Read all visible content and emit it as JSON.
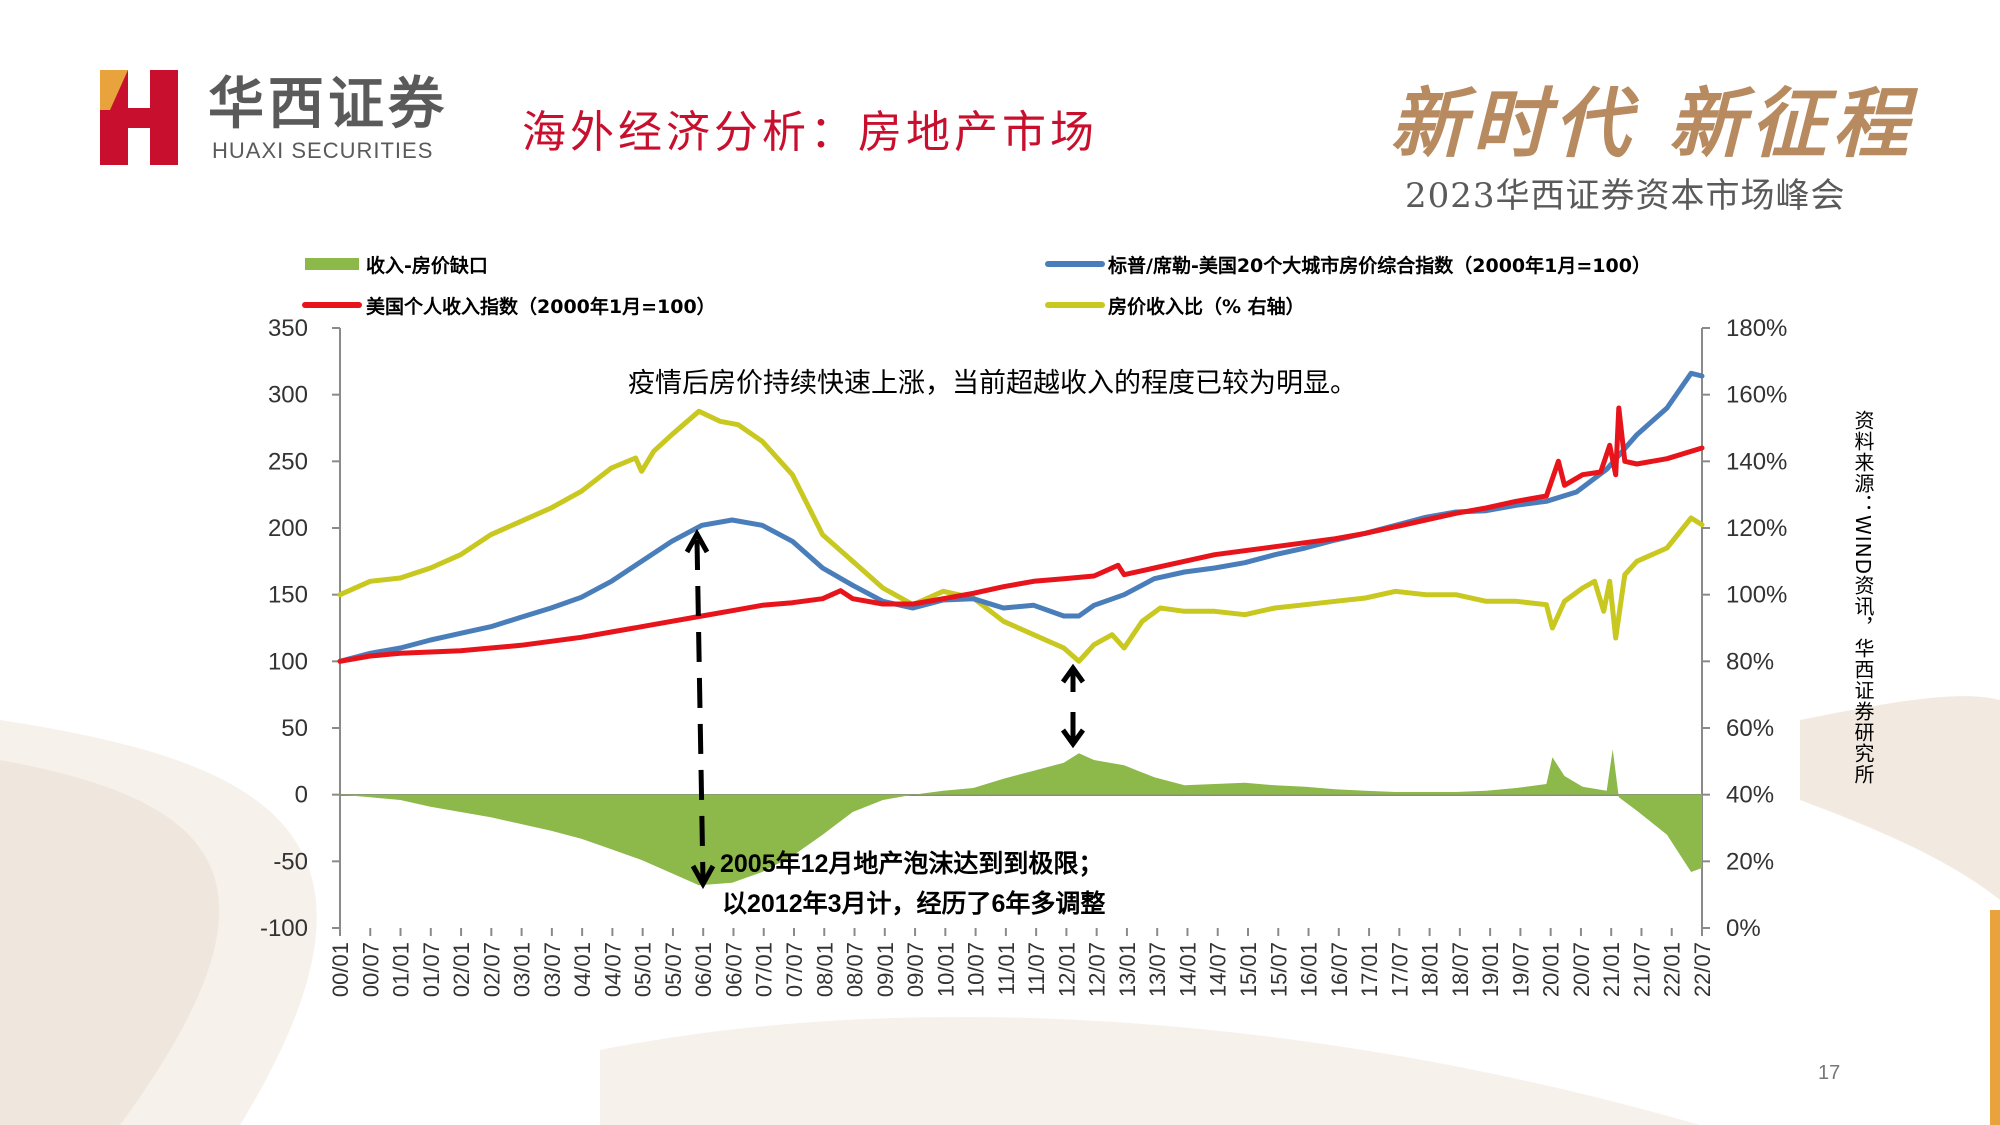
{
  "header": {
    "logo_cn": "华西证券",
    "logo_en": "HUAXI SECURITIES",
    "slide_title": "海外经济分析：房地产市场",
    "slogan": "新时代 新征程",
    "summit": "2023华西证券资本市场峰会"
  },
  "source_note": "资料来源：WIND资讯，华西证券研究所",
  "page_number": "17",
  "colors": {
    "gap": "#8db84a",
    "case_shiller": "#4a7ebb",
    "income": "#e8141b",
    "ratio": "#c8c820",
    "title_red": "#c8102e",
    "gold": "#b78a5f"
  },
  "chart_data": {
    "type": "line",
    "annotations": [
      "疫情后房价持续快速上涨，当前超越收入的程度已较为明显。",
      "2005年12月地产泡沫达到到极限；",
      "以2012年3月计，经历了6年多调整"
    ],
    "y_left": {
      "ticks": [
        "350",
        "300",
        "250",
        "200",
        "150",
        "100",
        "50",
        "0",
        "-50",
        "-100"
      ],
      "range": [
        -100,
        350
      ]
    },
    "y_right": {
      "ticks": [
        "180%",
        "160%",
        "140%",
        "120%",
        "100%",
        "80%",
        "60%",
        "40%",
        "20%",
        "0%"
      ],
      "range": [
        0,
        180
      ]
    },
    "x_ticks": [
      "00/01",
      "00/07",
      "01/01",
      "01/07",
      "02/01",
      "02/07",
      "03/01",
      "03/07",
      "04/01",
      "04/07",
      "05/01",
      "05/07",
      "06/01",
      "06/07",
      "07/01",
      "07/07",
      "08/01",
      "08/07",
      "09/01",
      "09/07",
      "10/01",
      "10/07",
      "11/01",
      "11/07",
      "12/01",
      "12/07",
      "13/01",
      "13/07",
      "14/01",
      "14/07",
      "15/01",
      "15/07",
      "16/01",
      "16/07",
      "17/01",
      "17/07",
      "18/01",
      "18/07",
      "19/01",
      "19/07",
      "20/01",
      "20/07",
      "21/01",
      "21/07",
      "22/01",
      "22/07"
    ],
    "x_range": [
      2000.0,
      2022.58
    ],
    "series": [
      {
        "name": "收入-房价缺口",
        "kind": "area",
        "axis": "left",
        "points": [
          [
            2000.0,
            0
          ],
          [
            2000.5,
            -2
          ],
          [
            2001.0,
            -4
          ],
          [
            2001.5,
            -9
          ],
          [
            2002.0,
            -13
          ],
          [
            2002.5,
            -17
          ],
          [
            2003.0,
            -22
          ],
          [
            2003.5,
            -27
          ],
          [
            2004.0,
            -33
          ],
          [
            2004.5,
            -41
          ],
          [
            2005.0,
            -49
          ],
          [
            2005.5,
            -59
          ],
          [
            2005.95,
            -68
          ],
          [
            2006.5,
            -66
          ],
          [
            2007.0,
            -58
          ],
          [
            2007.5,
            -46
          ],
          [
            2008.0,
            -30
          ],
          [
            2008.5,
            -13
          ],
          [
            2009.0,
            -4
          ],
          [
            2009.5,
            0
          ],
          [
            2010.0,
            3
          ],
          [
            2010.5,
            5
          ],
          [
            2011.0,
            12
          ],
          [
            2011.5,
            18
          ],
          [
            2012.0,
            24
          ],
          [
            2012.25,
            31
          ],
          [
            2012.5,
            26
          ],
          [
            2013.0,
            22
          ],
          [
            2013.5,
            13
          ],
          [
            2014.0,
            7
          ],
          [
            2014.5,
            8
          ],
          [
            2015.0,
            9
          ],
          [
            2015.5,
            7
          ],
          [
            2016.0,
            6
          ],
          [
            2016.5,
            4
          ],
          [
            2017.0,
            3
          ],
          [
            2017.5,
            2
          ],
          [
            2018.0,
            2
          ],
          [
            2018.5,
            2
          ],
          [
            2019.0,
            3
          ],
          [
            2019.5,
            5
          ],
          [
            2020.0,
            8
          ],
          [
            2020.1,
            28
          ],
          [
            2020.3,
            14
          ],
          [
            2020.6,
            6
          ],
          [
            2021.0,
            3
          ],
          [
            2021.1,
            34
          ],
          [
            2021.2,
            -2
          ],
          [
            2021.5,
            -12
          ],
          [
            2022.0,
            -30
          ],
          [
            2022.4,
            -58
          ],
          [
            2022.58,
            -55
          ]
        ]
      },
      {
        "name": "标普/席勒-美国20个大城市房价综合指数（2000年1月=100）",
        "kind": "line",
        "axis": "left",
        "points": [
          [
            2000.0,
            100
          ],
          [
            2000.5,
            106
          ],
          [
            2001.0,
            110
          ],
          [
            2001.5,
            116
          ],
          [
            2002.0,
            121
          ],
          [
            2002.5,
            126
          ],
          [
            2003.0,
            133
          ],
          [
            2003.5,
            140
          ],
          [
            2004.0,
            148
          ],
          [
            2004.5,
            160
          ],
          [
            2005.0,
            175
          ],
          [
            2005.5,
            190
          ],
          [
            2006.0,
            202
          ],
          [
            2006.5,
            206
          ],
          [
            2007.0,
            202
          ],
          [
            2007.5,
            190
          ],
          [
            2008.0,
            170
          ],
          [
            2008.5,
            157
          ],
          [
            2009.0,
            145
          ],
          [
            2009.5,
            140
          ],
          [
            2010.0,
            146
          ],
          [
            2010.5,
            147
          ],
          [
            2011.0,
            140
          ],
          [
            2011.5,
            142
          ],
          [
            2012.0,
            134
          ],
          [
            2012.25,
            134
          ],
          [
            2012.5,
            142
          ],
          [
            2013.0,
            150
          ],
          [
            2013.5,
            162
          ],
          [
            2014.0,
            167
          ],
          [
            2014.5,
            170
          ],
          [
            2015.0,
            174
          ],
          [
            2015.5,
            180
          ],
          [
            2016.0,
            185
          ],
          [
            2016.5,
            191
          ],
          [
            2017.0,
            196
          ],
          [
            2017.5,
            202
          ],
          [
            2018.0,
            208
          ],
          [
            2018.5,
            212
          ],
          [
            2019.0,
            213
          ],
          [
            2019.5,
            217
          ],
          [
            2020.0,
            220
          ],
          [
            2020.5,
            227
          ],
          [
            2021.0,
            244
          ],
          [
            2021.5,
            270
          ],
          [
            2022.0,
            290
          ],
          [
            2022.4,
            316
          ],
          [
            2022.58,
            314
          ]
        ]
      },
      {
        "name": "美国个人收入指数（2000年1月=100）",
        "kind": "line",
        "axis": "left",
        "points": [
          [
            2000.0,
            100
          ],
          [
            2000.5,
            104
          ],
          [
            2001.0,
            106
          ],
          [
            2001.5,
            107
          ],
          [
            2002.0,
            108
          ],
          [
            2002.5,
            110
          ],
          [
            2003.0,
            112
          ],
          [
            2003.5,
            115
          ],
          [
            2004.0,
            118
          ],
          [
            2004.5,
            122
          ],
          [
            2005.0,
            126
          ],
          [
            2005.5,
            130
          ],
          [
            2006.0,
            134
          ],
          [
            2006.5,
            138
          ],
          [
            2007.0,
            142
          ],
          [
            2007.5,
            144
          ],
          [
            2008.0,
            147
          ],
          [
            2008.3,
            153
          ],
          [
            2008.5,
            147
          ],
          [
            2009.0,
            143
          ],
          [
            2009.5,
            143
          ],
          [
            2010.0,
            147
          ],
          [
            2010.5,
            151
          ],
          [
            2011.0,
            156
          ],
          [
            2011.5,
            160
          ],
          [
            2012.0,
            162
          ],
          [
            2012.5,
            164
          ],
          [
            2012.9,
            172
          ],
          [
            2013.0,
            165
          ],
          [
            2013.5,
            170
          ],
          [
            2014.0,
            175
          ],
          [
            2014.5,
            180
          ],
          [
            2015.0,
            183
          ],
          [
            2015.5,
            186
          ],
          [
            2016.0,
            189
          ],
          [
            2016.5,
            192
          ],
          [
            2017.0,
            196
          ],
          [
            2017.5,
            201
          ],
          [
            2018.0,
            206
          ],
          [
            2018.5,
            211
          ],
          [
            2019.0,
            215
          ],
          [
            2019.5,
            220
          ],
          [
            2020.0,
            224
          ],
          [
            2020.2,
            250
          ],
          [
            2020.3,
            232
          ],
          [
            2020.6,
            240
          ],
          [
            2020.9,
            242
          ],
          [
            2021.05,
            262
          ],
          [
            2021.15,
            240
          ],
          [
            2021.2,
            290
          ],
          [
            2021.3,
            250
          ],
          [
            2021.5,
            248
          ],
          [
            2022.0,
            252
          ],
          [
            2022.58,
            260
          ]
        ]
      },
      {
        "name": "房价收入比（% 右轴）",
        "kind": "line",
        "axis": "right",
        "points": [
          [
            2000.0,
            100
          ],
          [
            2000.5,
            104
          ],
          [
            2001.0,
            105
          ],
          [
            2001.5,
            108
          ],
          [
            2002.0,
            112
          ],
          [
            2002.5,
            118
          ],
          [
            2003.0,
            122
          ],
          [
            2003.5,
            126
          ],
          [
            2004.0,
            131
          ],
          [
            2004.5,
            138
          ],
          [
            2004.9,
            141
          ],
          [
            2005.0,
            137
          ],
          [
            2005.2,
            143
          ],
          [
            2005.5,
            148
          ],
          [
            2005.95,
            155
          ],
          [
            2006.3,
            152
          ],
          [
            2006.6,
            151
          ],
          [
            2007.0,
            146
          ],
          [
            2007.5,
            136
          ],
          [
            2008.0,
            118
          ],
          [
            2008.5,
            110
          ],
          [
            2009.0,
            102
          ],
          [
            2009.5,
            97
          ],
          [
            2010.0,
            101
          ],
          [
            2010.5,
            99
          ],
          [
            2011.0,
            92
          ],
          [
            2011.5,
            88
          ],
          [
            2012.0,
            84
          ],
          [
            2012.25,
            80
          ],
          [
            2012.5,
            85
          ],
          [
            2012.8,
            88
          ],
          [
            2013.0,
            84
          ],
          [
            2013.3,
            92
          ],
          [
            2013.6,
            96
          ],
          [
            2014.0,
            95
          ],
          [
            2014.5,
            95
          ],
          [
            2015.0,
            94
          ],
          [
            2015.5,
            96
          ],
          [
            2016.0,
            97
          ],
          [
            2016.5,
            98
          ],
          [
            2017.0,
            99
          ],
          [
            2017.5,
            101
          ],
          [
            2018.0,
            100
          ],
          [
            2018.5,
            100
          ],
          [
            2019.0,
            98
          ],
          [
            2019.5,
            98
          ],
          [
            2020.0,
            97
          ],
          [
            2020.1,
            90
          ],
          [
            2020.3,
            98
          ],
          [
            2020.6,
            102
          ],
          [
            2020.8,
            104
          ],
          [
            2020.95,
            95
          ],
          [
            2021.05,
            104
          ],
          [
            2021.15,
            87
          ],
          [
            2021.3,
            106
          ],
          [
            2021.5,
            110
          ],
          [
            2022.0,
            114
          ],
          [
            2022.4,
            123
          ],
          [
            2022.58,
            121
          ]
        ]
      }
    ]
  }
}
